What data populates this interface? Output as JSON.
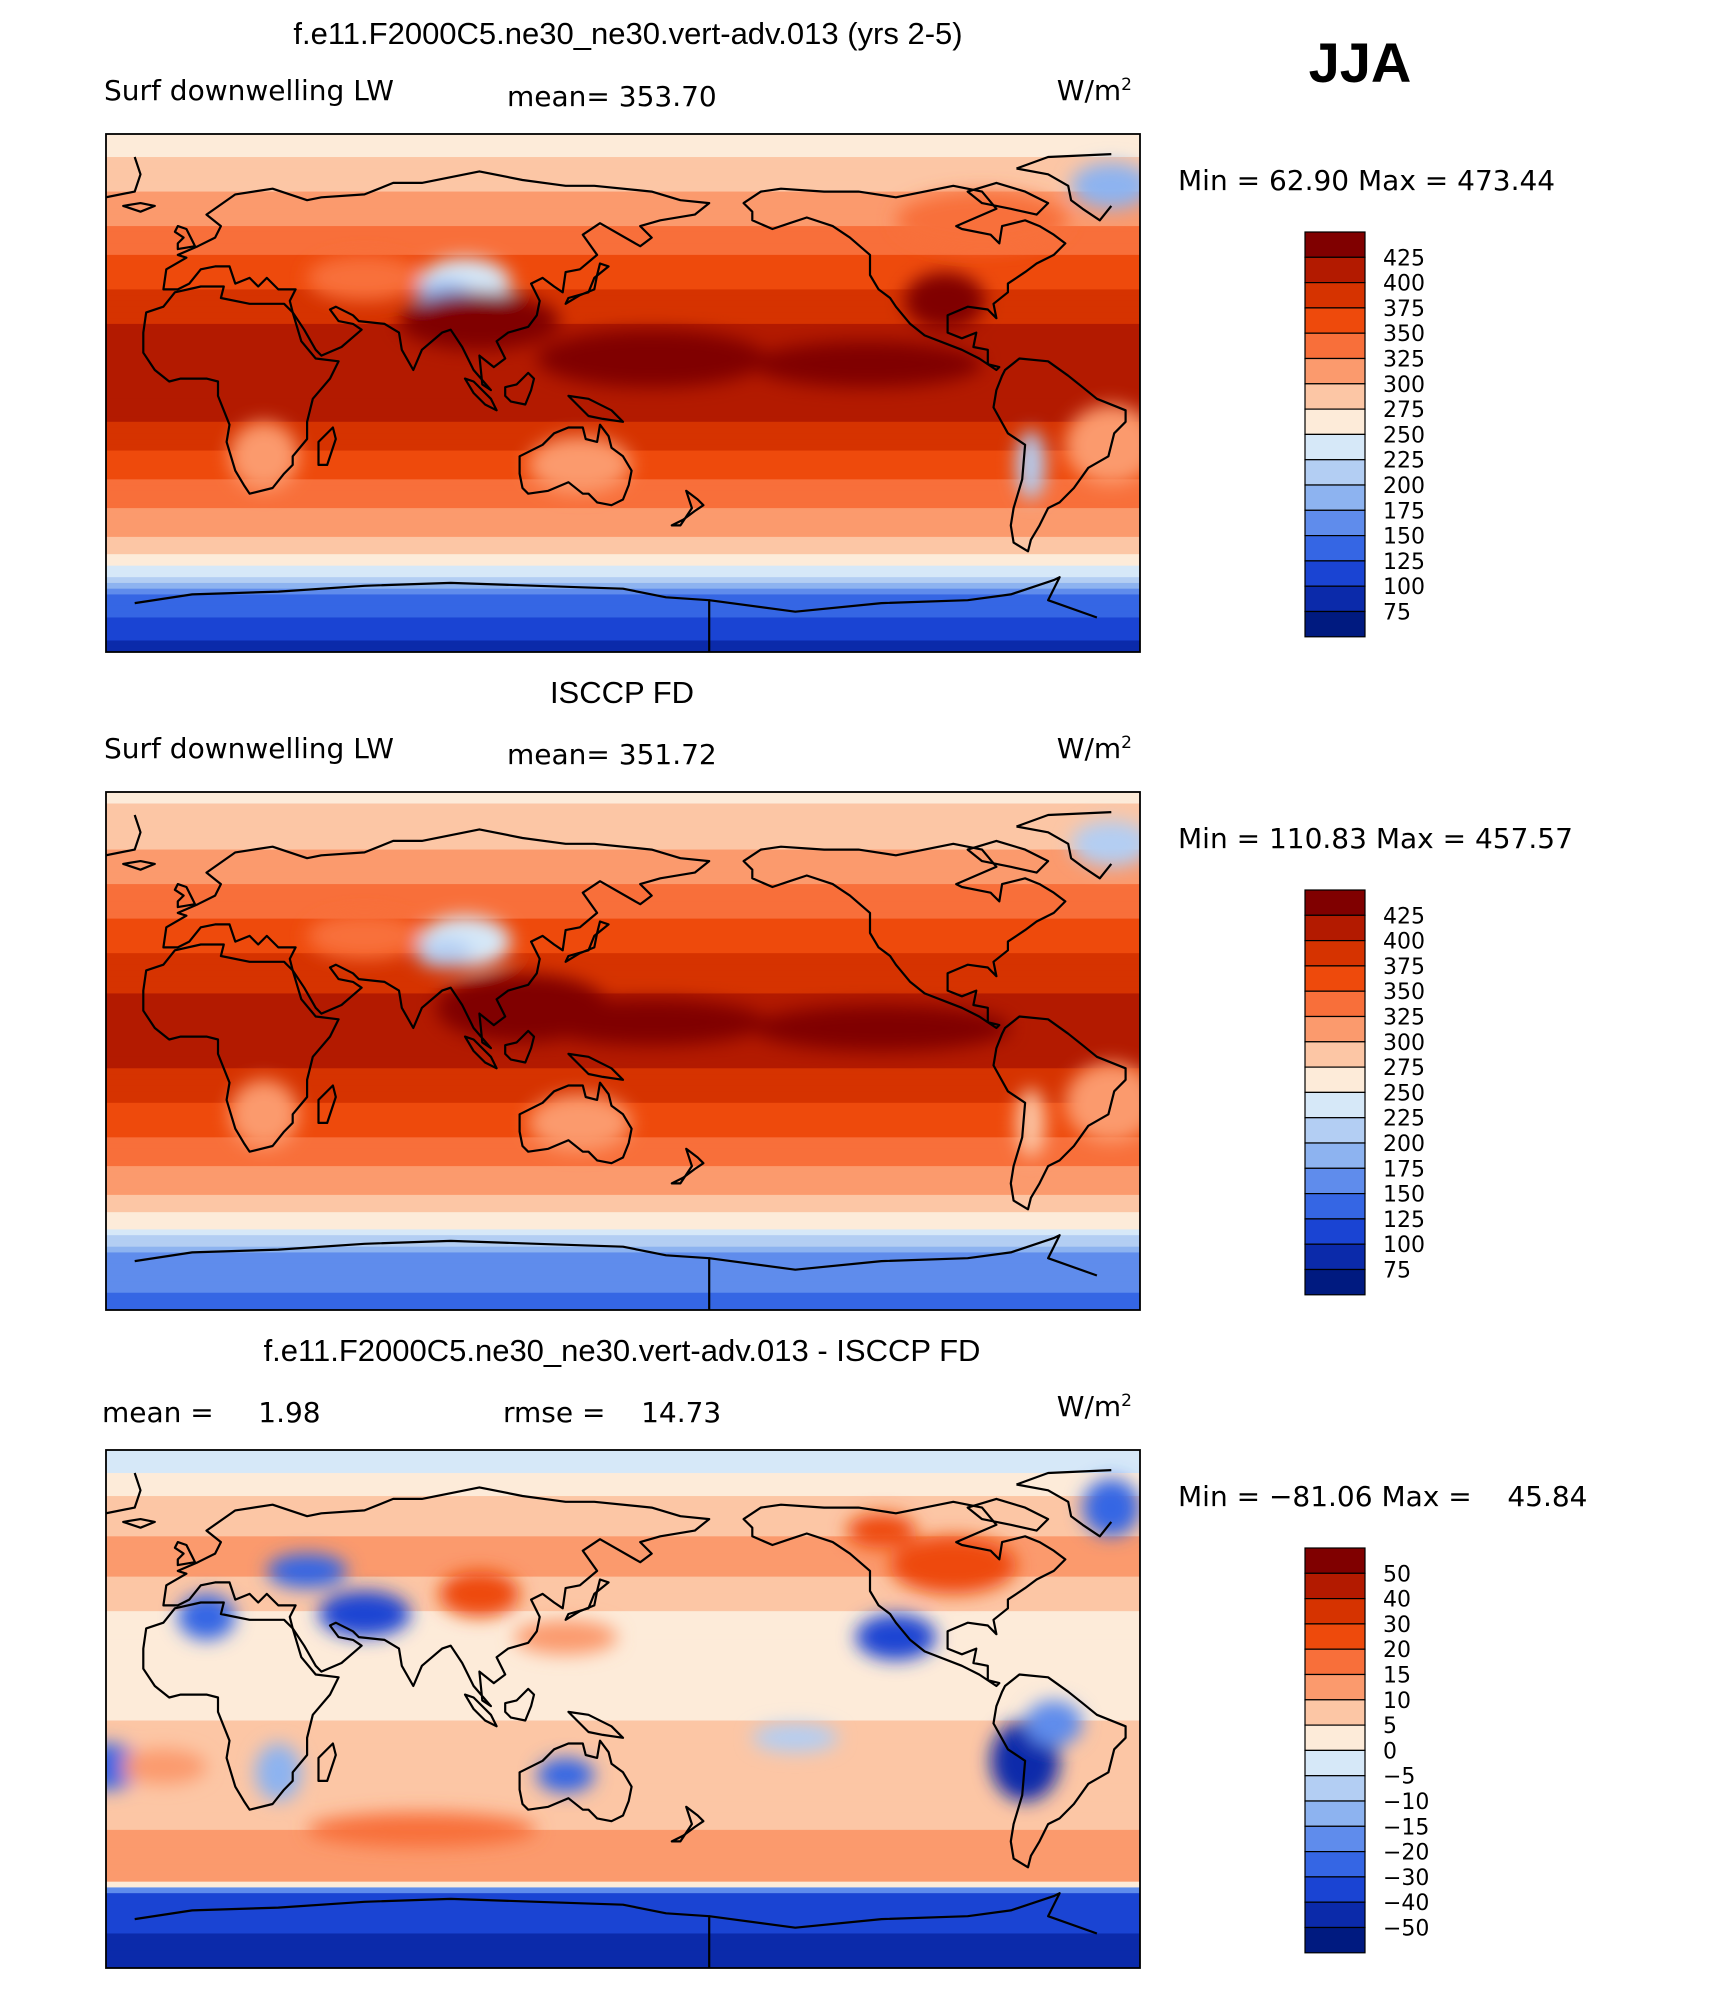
{
  "season_label": "JJA",
  "chart_data": [
    {
      "type": "heatmap",
      "title": "f.e11.F2000C5.ne30_ne30.vert-adv.013 (yrs 2-5)",
      "left_label": "Surf downwelling LW",
      "center_label": "mean= 353.70",
      "units": "W/m",
      "units_sup": "2",
      "stats": "Min =   62.90 Max = 473.44",
      "scale": "abs",
      "colorbar": {
        "levels": [
          "425",
          "400",
          "375",
          "350",
          "325",
          "300",
          "275",
          "250",
          "225",
          "200",
          "175",
          "150",
          "125",
          "100",
          "75"
        ],
        "colors": [
          "#800000",
          "#b31a00",
          "#d63300",
          "#ee4a0c",
          "#f86f3a",
          "#fb9a6d",
          "#fcc6a5",
          "#fdebd9",
          "#d6e8f8",
          "#b3cef3",
          "#8db3f0",
          "#5f8cec",
          "#3566e4",
          "#1a44d3",
          "#0b2aaa",
          "#001a80"
        ]
      },
      "zonal_profile": [
        {
          "lat": 90,
          "value": 260
        },
        {
          "lat": 70,
          "value": 300
        },
        {
          "lat": 50,
          "value": 345
        },
        {
          "lat": 30,
          "value": 390
        },
        {
          "lat": 10,
          "value": 420
        },
        {
          "lat": -10,
          "value": 400
        },
        {
          "lat": -30,
          "value": 350
        },
        {
          "lat": -50,
          "value": 300
        },
        {
          "lat": -62,
          "value": 240
        },
        {
          "lat": -70,
          "value": 150
        },
        {
          "lat": -90,
          "value": 90
        }
      ]
    },
    {
      "type": "heatmap",
      "title": "ISCCP FD",
      "left_label": "Surf downwelling LW",
      "center_label": "mean= 351.72",
      "units": "W/m",
      "units_sup": "2",
      "stats": "Min = 110.83 Max = 457.57",
      "scale": "abs",
      "colorbar": {
        "levels": [
          "425",
          "400",
          "375",
          "350",
          "325",
          "300",
          "275",
          "250",
          "225",
          "200",
          "175",
          "150",
          "125",
          "100",
          "75"
        ],
        "colors": [
          "#800000",
          "#b31a00",
          "#d63300",
          "#ee4a0c",
          "#f86f3a",
          "#fb9a6d",
          "#fcc6a5",
          "#fdebd9",
          "#d6e8f8",
          "#b3cef3",
          "#8db3f0",
          "#5f8cec",
          "#3566e4",
          "#1a44d3",
          "#0b2aaa",
          "#001a80"
        ]
      },
      "zonal_profile": [
        {
          "lat": 90,
          "value": 270
        },
        {
          "lat": 70,
          "value": 300
        },
        {
          "lat": 50,
          "value": 340
        },
        {
          "lat": 30,
          "value": 385
        },
        {
          "lat": 10,
          "value": 415
        },
        {
          "lat": -10,
          "value": 395
        },
        {
          "lat": -30,
          "value": 350
        },
        {
          "lat": -50,
          "value": 300
        },
        {
          "lat": -62,
          "value": 250
        },
        {
          "lat": -70,
          "value": 170
        },
        {
          "lat": -90,
          "value": 140
        }
      ]
    },
    {
      "type": "heatmap",
      "title": "f.e11.F2000C5.ne30_ne30.vert-adv.013 - ISCCP FD",
      "left_label": "mean =     1.98",
      "center_label": "rmse =    14.73",
      "units": "W/m",
      "units_sup": "2",
      "stats": "Min = −81.06 Max =    45.84",
      "scale": "diff",
      "colorbar": {
        "levels": [
          "50",
          "40",
          "30",
          "20",
          "15",
          "10",
          "5",
          "0",
          "−5",
          "−10",
          "−15",
          "−20",
          "−30",
          "−40",
          "−50"
        ],
        "colors": [
          "#800000",
          "#b31a00",
          "#d63300",
          "#ee4a0c",
          "#f86f3a",
          "#fb9a6d",
          "#fcc6a5",
          "#fdebd9",
          "#d6e8f8",
          "#b3cef3",
          "#8db3f0",
          "#5f8cec",
          "#3566e4",
          "#1a44d3",
          "#0b2aaa",
          "#001a80"
        ]
      },
      "zonal_profile": [
        {
          "lat": 90,
          "value": -5
        },
        {
          "lat": 70,
          "value": 8
        },
        {
          "lat": 50,
          "value": 12
        },
        {
          "lat": 30,
          "value": 3
        },
        {
          "lat": 10,
          "value": 2
        },
        {
          "lat": -10,
          "value": 6
        },
        {
          "lat": -30,
          "value": 7
        },
        {
          "lat": -50,
          "value": 12
        },
        {
          "lat": -60,
          "value": 14
        },
        {
          "lat": -65,
          "value": -35
        },
        {
          "lat": -90,
          "value": -45
        }
      ]
    }
  ]
}
